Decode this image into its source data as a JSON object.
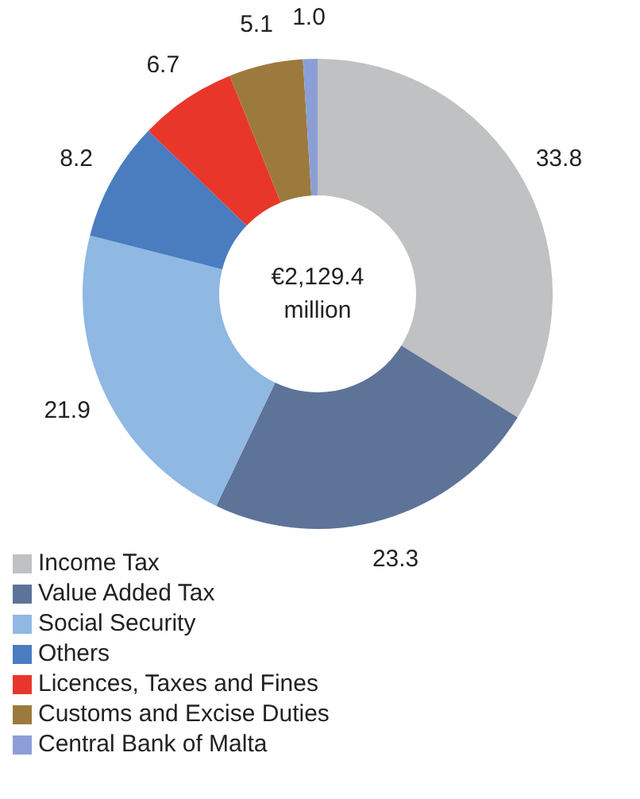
{
  "chart_data": {
    "type": "donut",
    "categories": [
      "Income Tax",
      "Value Added Tax",
      "Social Security",
      "Others",
      "Licences, Taxes and Fines",
      "Customs and Excise Duties",
      "Central Bank of Malta"
    ],
    "values": [
      33.8,
      23.3,
      21.9,
      8.2,
      6.7,
      5.1,
      1.0
    ],
    "colors": [
      "#bfc1c3",
      "#5e7398",
      "#8fb8e2",
      "#4a7cc0",
      "#e8372a",
      "#9c7a3e",
      "#8b9fd6"
    ],
    "value_labels": [
      "33.8",
      "23.3",
      "21.9",
      "8.2",
      "6.7",
      "5.1",
      "1.0"
    ],
    "legend": "bottom",
    "annotations": [
      "€2,129.4 million"
    ]
  }
}
